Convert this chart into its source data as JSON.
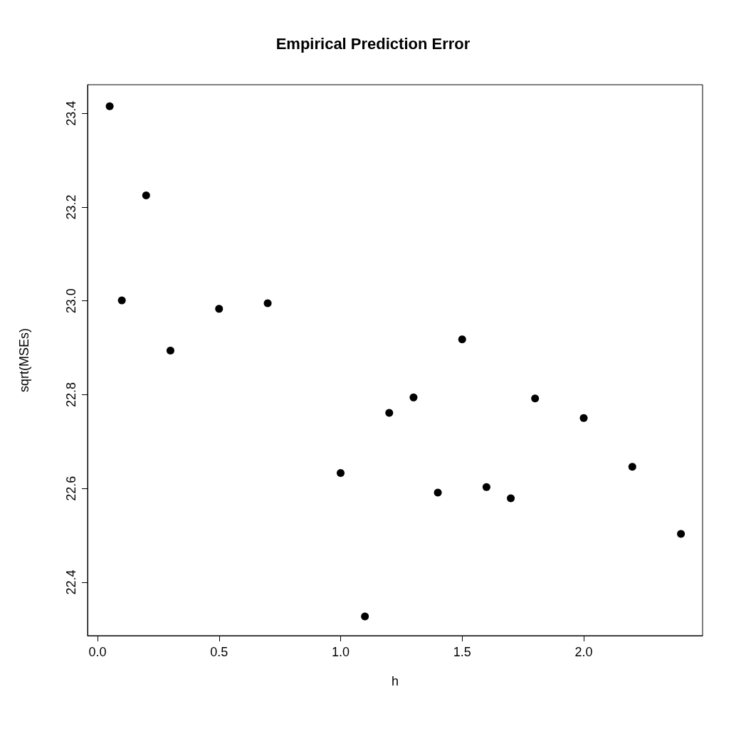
{
  "chart_data": {
    "type": "scatter",
    "title": "Empirical Prediction Error",
    "xlabel": "h",
    "ylabel": "sqrt(MSEs)",
    "x": [
      0.05,
      0.1,
      0.2,
      0.3,
      0.5,
      0.7,
      1.0,
      1.1,
      1.2,
      1.3,
      1.4,
      1.5,
      1.6,
      1.7,
      1.8,
      2.0,
      2.2,
      2.4
    ],
    "values": [
      23.415,
      23.001,
      23.225,
      22.894,
      22.983,
      22.995,
      22.633,
      22.327,
      22.761,
      22.794,
      22.591,
      22.918,
      22.603,
      22.579,
      22.792,
      22.75,
      22.646,
      22.503
    ],
    "color": "#000000",
    "marker": "circle",
    "grid": false,
    "xlim": [
      -0.041,
      2.489
    ],
    "ylim": [
      22.286,
      23.461
    ],
    "xticks": [
      {
        "value": 0,
        "label": "0.0"
      },
      {
        "value": 0.5,
        "label": "0.5"
      },
      {
        "value": 1,
        "label": "1.0"
      },
      {
        "value": 1.5,
        "label": "1.5"
      },
      {
        "value": 2,
        "label": "2.0"
      }
    ],
    "yticks": [
      22.4,
      22.6,
      22.8,
      {
        "value": 23,
        "label": "23.0"
      },
      23.2,
      23.4
    ]
  }
}
